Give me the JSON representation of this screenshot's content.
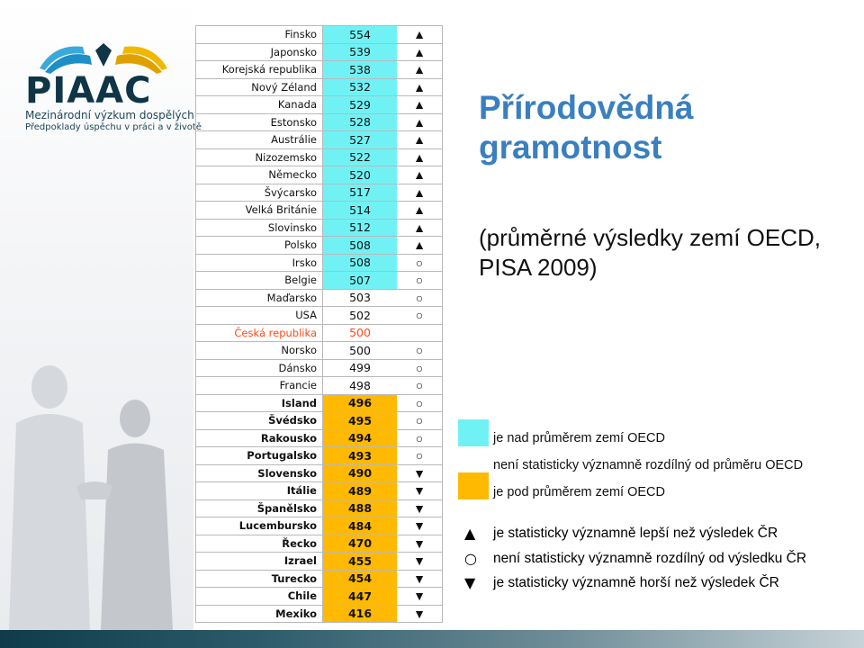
{
  "logo": {
    "wordmark": "PIAAC",
    "line1": "Mezinárodní výzkum dospělých",
    "line2": "Předpoklady úspěchu v práci a v životě"
  },
  "title": "Přírodovědná gramotnost",
  "subtitle": "(průměrné výsledky zemí OECD, PISA 2009)",
  "colors": {
    "above_mean": "#70f2f5",
    "below_mean": "#ffb900",
    "czech": "#ff4a17",
    "title": "#3a7fc0"
  },
  "symbols": {
    "better": "▲",
    "same": "○",
    "worse": "▼"
  },
  "table": {
    "rows": [
      {
        "country": "Finsko",
        "score": "554",
        "symbol": "▲",
        "cls": "above"
      },
      {
        "country": "Japonsko",
        "score": "539",
        "symbol": "▲",
        "cls": "above"
      },
      {
        "country": "Korejská republika",
        "score": "538",
        "symbol": "▲",
        "cls": "above"
      },
      {
        "country": "Nový Zéland",
        "score": "532",
        "symbol": "▲",
        "cls": "above"
      },
      {
        "country": "Kanada",
        "score": "529",
        "symbol": "▲",
        "cls": "above"
      },
      {
        "country": "Estonsko",
        "score": "528",
        "symbol": "▲",
        "cls": "above"
      },
      {
        "country": "Austrálie",
        "score": "527",
        "symbol": "▲",
        "cls": "above"
      },
      {
        "country": "Nizozemsko",
        "score": "522",
        "symbol": "▲",
        "cls": "above"
      },
      {
        "country": "Německo",
        "score": "520",
        "symbol": "▲",
        "cls": "above"
      },
      {
        "country": "Švýcarsko",
        "score": "517",
        "symbol": "▲",
        "cls": "above"
      },
      {
        "country": "Velká Británie",
        "score": "514",
        "symbol": "▲",
        "cls": "above"
      },
      {
        "country": "Slovinsko",
        "score": "512",
        "symbol": "▲",
        "cls": "above"
      },
      {
        "country": "Polsko",
        "score": "508",
        "symbol": "▲",
        "cls": "above"
      },
      {
        "country": "Irsko",
        "score": "508",
        "symbol": "○",
        "cls": "above"
      },
      {
        "country": "Belgie",
        "score": "507",
        "symbol": "○",
        "cls": "above"
      },
      {
        "country": "Maďarsko",
        "score": "503",
        "symbol": "○",
        "cls": "neutral"
      },
      {
        "country": "USA",
        "score": "502",
        "symbol": "○",
        "cls": "neutral"
      },
      {
        "country": "Česká republika",
        "score": "500",
        "symbol": "",
        "cls": "cz"
      },
      {
        "country": "Norsko",
        "score": "500",
        "symbol": "○",
        "cls": "neutral"
      },
      {
        "country": "Dánsko",
        "score": "499",
        "symbol": "○",
        "cls": "neutral"
      },
      {
        "country": "Francie",
        "score": "498",
        "symbol": "○",
        "cls": "neutral"
      },
      {
        "country": "Island",
        "score": "496",
        "symbol": "○",
        "cls": "below"
      },
      {
        "country": "Švédsko",
        "score": "495",
        "symbol": "○",
        "cls": "below"
      },
      {
        "country": "Rakousko",
        "score": "494",
        "symbol": "○",
        "cls": "below"
      },
      {
        "country": "Portugalsko",
        "score": "493",
        "symbol": "○",
        "cls": "below"
      },
      {
        "country": "Slovensko",
        "score": "490",
        "symbol": "▼",
        "cls": "below"
      },
      {
        "country": "Itálie",
        "score": "489",
        "symbol": "▼",
        "cls": "below"
      },
      {
        "country": "Španělsko",
        "score": "488",
        "symbol": "▼",
        "cls": "below"
      },
      {
        "country": "Lucembursko",
        "score": "484",
        "symbol": "▼",
        "cls": "below"
      },
      {
        "country": "Řecko",
        "score": "470",
        "symbol": "▼",
        "cls": "below"
      },
      {
        "country": "Izrael",
        "score": "455",
        "symbol": "▼",
        "cls": "below"
      },
      {
        "country": "Turecko",
        "score": "454",
        "symbol": "▼",
        "cls": "below"
      },
      {
        "country": "Chile",
        "score": "447",
        "symbol": "▼",
        "cls": "below"
      },
      {
        "country": "Mexiko",
        "score": "416",
        "symbol": "▼",
        "cls": "below"
      }
    ]
  },
  "legend": {
    "color_items": [
      {
        "text": "je nad průměrem zemí OECD",
        "color": "#70f2f5"
      },
      {
        "text": "není statisticky významně rozdílný od průměru OECD",
        "color": ""
      },
      {
        "text": "je pod průměrem zemí OECD",
        "color": "#ffb900"
      }
    ],
    "symbol_items": [
      {
        "symbol": "▲",
        "text": "je statisticky významně lepší než výsledek ČR"
      },
      {
        "symbol": "○",
        "text": "není statisticky významně rozdílný od výsledku ČR"
      },
      {
        "symbol": "▼",
        "text": "je statisticky významně horší než výsledek ČR"
      }
    ]
  }
}
